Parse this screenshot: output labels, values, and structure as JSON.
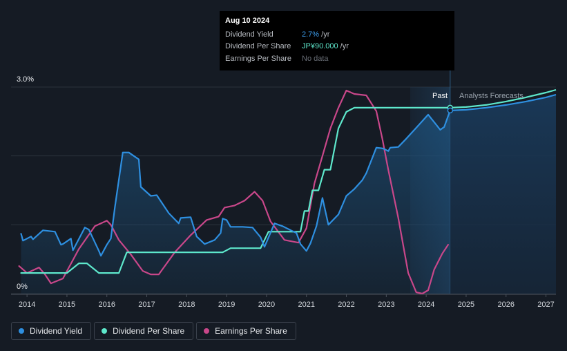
{
  "tooltip": {
    "date": "Aug 10 2024",
    "rows": [
      {
        "name": "Dividend Yield",
        "value": "2.7%",
        "unit": " /yr"
      },
      {
        "name": "Dividend Per Share",
        "value": "JP¥90.000",
        "unit": " /yr"
      },
      {
        "name": "Earnings Per Share",
        "value": "No data",
        "unit": ""
      }
    ]
  },
  "legend": [
    {
      "label": "Dividend Yield",
      "color": "#2e8fe0"
    },
    {
      "label": "Dividend Per Share",
      "color": "#5ee8cc"
    },
    {
      "label": "Earnings Per Share",
      "color": "#c9478a"
    }
  ],
  "chart_data": {
    "type": "line",
    "y_top_label": "3.0%",
    "y_bottom_label": "0%",
    "ylim": [
      0,
      3.0
    ],
    "xlim": [
      2013.6,
      2027.25
    ],
    "x_ticks": [
      "2014",
      "2015",
      "2016",
      "2017",
      "2018",
      "2019",
      "2020",
      "2021",
      "2022",
      "2023",
      "2024",
      "2025",
      "2026",
      "2027"
    ],
    "past_label": "Past",
    "forecast_label": "Analysts Forecasts",
    "forecast_start": 2023.6,
    "cursor_x": 2024.6,
    "series": [
      {
        "name": "Dividend Yield",
        "color": "#2e8fe0",
        "x": [
          2013.85,
          2013.9,
          2014.1,
          2014.15,
          2014.4,
          2014.7,
          2014.85,
          2014.9,
          2015.1,
          2015.15,
          2015.45,
          2015.55,
          2015.8,
          2015.85,
          2016.0,
          2016.1,
          2016.2,
          2016.4,
          2016.55,
          2016.8,
          2016.85,
          2017.1,
          2017.25,
          2017.55,
          2017.8,
          2017.85,
          2018.1,
          2018.25,
          2018.45,
          2018.7,
          2018.85,
          2018.9,
          2019.0,
          2019.1,
          2019.4,
          2019.65,
          2019.85,
          2019.95,
          2020.2,
          2020.4,
          2020.75,
          2020.85,
          2021.0,
          2021.1,
          2021.25,
          2021.4,
          2021.55,
          2021.8,
          2022.0,
          2022.2,
          2022.4,
          2022.5,
          2022.75,
          2022.9,
          2022.95,
          2023.05,
          2023.1,
          2023.3,
          2023.5,
          2023.8,
          2024.05,
          2024.35,
          2024.45,
          2024.6
        ],
        "values": [
          0.87,
          0.77,
          0.83,
          0.79,
          0.92,
          0.9,
          0.71,
          0.72,
          0.8,
          0.63,
          0.96,
          0.93,
          0.62,
          0.55,
          0.71,
          0.8,
          1.25,
          2.05,
          2.05,
          1.95,
          1.55,
          1.42,
          1.43,
          1.17,
          1.02,
          1.1,
          1.11,
          0.83,
          0.72,
          0.78,
          0.88,
          1.09,
          1.07,
          0.97,
          0.97,
          0.96,
          0.82,
          0.68,
          1.02,
          0.98,
          0.88,
          0.72,
          0.62,
          0.73,
          0.98,
          1.39,
          1.0,
          1.15,
          1.42,
          1.52,
          1.65,
          1.75,
          2.12,
          2.11,
          2.1,
          2.07,
          2.12,
          2.13,
          2.25,
          2.44,
          2.6,
          2.38,
          2.42,
          2.66
        ]
      },
      {
        "name": "Dividend Per Share",
        "color": "#5ee8cc",
        "x": [
          2013.85,
          2014.2,
          2015.0,
          2015.3,
          2015.5,
          2015.8,
          2015.9,
          2016.1,
          2016.3,
          2016.5,
          2016.8,
          2018.5,
          2018.9,
          2019.1,
          2019.4,
          2019.7,
          2019.85,
          2020.05,
          2020.25,
          2020.6,
          2020.85,
          2020.95,
          2021.05,
          2021.15,
          2021.3,
          2021.45,
          2021.6,
          2021.8,
          2022.0,
          2022.2,
          2022.5,
          2022.8,
          2023.2,
          2023.6,
          2024.0,
          2024.45,
          2024.6
        ],
        "values": [
          0.3,
          0.3,
          0.3,
          0.44,
          0.44,
          0.3,
          0.3,
          0.3,
          0.3,
          0.6,
          0.6,
          0.6,
          0.6,
          0.66,
          0.66,
          0.66,
          0.66,
          0.9,
          0.9,
          0.9,
          0.9,
          1.2,
          1.2,
          1.5,
          1.5,
          1.8,
          1.8,
          2.4,
          2.64,
          2.7,
          2.7,
          2.7,
          2.7,
          2.7,
          2.7,
          2.7,
          2.7
        ]
      },
      {
        "name": "Earnings Per Share",
        "color": "#c9478a",
        "x": [
          2013.8,
          2014.0,
          2014.3,
          2014.45,
          2014.6,
          2014.9,
          2015.3,
          2015.7,
          2016.0,
          2016.1,
          2016.3,
          2016.6,
          2016.9,
          2017.1,
          2017.3,
          2017.7,
          2018.1,
          2018.5,
          2018.8,
          2018.95,
          2019.2,
          2019.45,
          2019.7,
          2019.9,
          2020.1,
          2020.45,
          2020.8,
          2021.0,
          2021.2,
          2021.4,
          2021.6,
          2021.8,
          2022.0,
          2022.2,
          2022.5,
          2022.75,
          2022.9,
          2023.05,
          2023.3,
          2023.55,
          2023.75,
          2023.9,
          2024.05,
          2024.2,
          2024.4,
          2024.55
        ],
        "values": [
          0.4,
          0.3,
          0.38,
          0.28,
          0.15,
          0.22,
          0.65,
          0.98,
          1.06,
          1.0,
          0.78,
          0.57,
          0.33,
          0.28,
          0.28,
          0.6,
          0.85,
          1.07,
          1.12,
          1.25,
          1.28,
          1.35,
          1.48,
          1.35,
          1.05,
          0.78,
          0.74,
          0.95,
          1.6,
          2.0,
          2.4,
          2.7,
          2.95,
          2.9,
          2.88,
          2.65,
          2.25,
          1.8,
          1.1,
          0.3,
          0.02,
          0.0,
          0.05,
          0.35,
          0.58,
          0.71
        ]
      }
    ],
    "forecast_series": [
      {
        "name": "Dividend Per Share forecast",
        "color": "#5ee8cc",
        "x": [
          2024.6,
          2025.0,
          2025.5,
          2026.0,
          2026.5,
          2027.0,
          2027.25
        ],
        "values": [
          2.7,
          2.71,
          2.74,
          2.79,
          2.85,
          2.92,
          2.96
        ]
      },
      {
        "name": "Dividend Yield forecast",
        "color": "#2e8fe0",
        "x": [
          2024.6,
          2025.0,
          2025.5,
          2026.0,
          2026.5,
          2027.0,
          2027.25
        ],
        "values": [
          2.66,
          2.67,
          2.7,
          2.74,
          2.79,
          2.85,
          2.89
        ]
      }
    ]
  }
}
